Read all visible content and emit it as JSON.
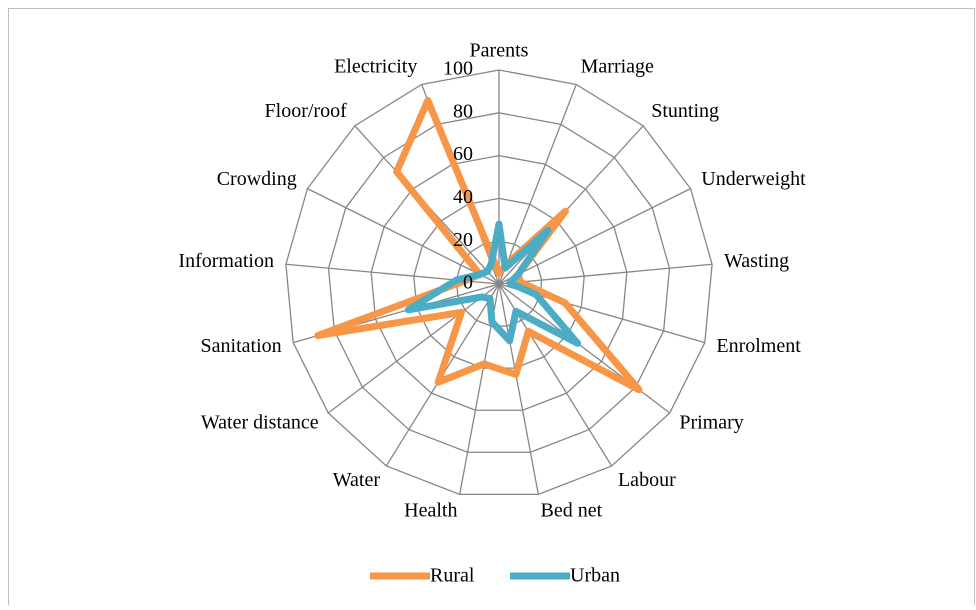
{
  "chart_data": {
    "type": "radar",
    "categories": [
      "Parents",
      "Marriage",
      "Stunting",
      "Underweight",
      "Wasting",
      "Enrolment",
      "Primary",
      "Labour",
      "Bed net",
      "Health",
      "Water",
      "Water distance",
      "Sanitation",
      "Information",
      "Crowding",
      "Floor/roof",
      "Electricity"
    ],
    "series": [
      {
        "name": "Rural",
        "color": "#f79646",
        "values": [
          5,
          10,
          46,
          10,
          10,
          32,
          82,
          26,
          43,
          38,
          54,
          22,
          88,
          16,
          10,
          71,
          92
        ]
      },
      {
        "name": "Urban",
        "color": "#4bacc6",
        "values": [
          28,
          8,
          34,
          10,
          5,
          18,
          46,
          15,
          27,
          18,
          8,
          10,
          44,
          20,
          10,
          8,
          10
        ]
      }
    ],
    "ylim": [
      0,
      100
    ],
    "yticks": [
      0,
      20,
      40,
      60,
      80,
      100
    ],
    "grid": true,
    "legend": "bottom"
  }
}
